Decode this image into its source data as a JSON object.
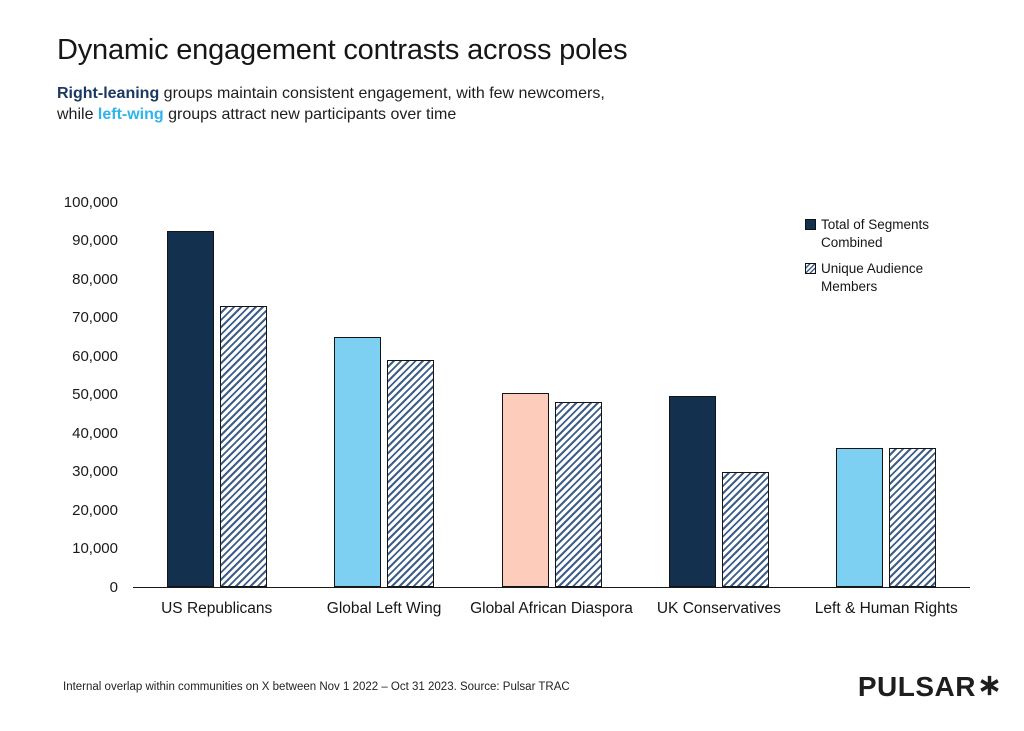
{
  "header": {
    "title": "Dynamic engagement contrasts across poles",
    "subtitle_lines": [
      [
        {
          "text": "Right-leaning",
          "style": "navy-bold"
        },
        {
          "text": " groups maintain consistent engagement, with few newcomers,",
          "style": "plain"
        }
      ],
      [
        {
          "text": "while ",
          "style": "plain"
        },
        {
          "text": "left-wing",
          "style": "cyan-bold"
        },
        {
          "text": " groups attract new participants over time",
          "style": "plain"
        }
      ]
    ]
  },
  "chart_data": {
    "type": "bar",
    "categories": [
      "US Republicans",
      "Global Left Wing",
      "Global African Diaspora",
      "UK Conservatives",
      "Left & Human Rights"
    ],
    "series": [
      {
        "name": "Total of Segments Combined",
        "values": [
          92500,
          65000,
          50500,
          49500,
          36000
        ],
        "style": "solid",
        "colors": [
          "#13304f",
          "#7dd0f2",
          "#fdccbb",
          "#13304f",
          "#7dd0f2"
        ]
      },
      {
        "name": "Unique Audience Members",
        "values": [
          73000,
          59000,
          48000,
          30000,
          36000
        ],
        "style": "hatched",
        "hatch_color": "#3d5f8a"
      }
    ],
    "title": "Dynamic engagement contrasts across poles",
    "xlabel": "",
    "ylabel": "",
    "ylim": [
      0,
      100000
    ],
    "ytick_step": 10000,
    "ytick_labels": [
      "100,000",
      "90,000",
      "80,000",
      "70,000",
      "60,000",
      "50,000",
      "40,000",
      "30,000",
      "20,000",
      "10,000",
      "0"
    ],
    "grid": false,
    "legend_position": "top-right"
  },
  "footer": {
    "source_note": "Internal overlap within communities on X between Nov 1 2022 – Oct 31 2023. Source: Pulsar TRAC",
    "logo_text": "PULSAR",
    "logo_icon": "asterisk-icon"
  },
  "colors": {
    "navy": "#13304f",
    "navy_text": "#1c3a60",
    "cyan_text": "#2fb5ec",
    "light_blue": "#7dd0f2",
    "peach": "#fdccbb",
    "hatch": "#3d5f8a",
    "axis": "#1a1a1a"
  }
}
